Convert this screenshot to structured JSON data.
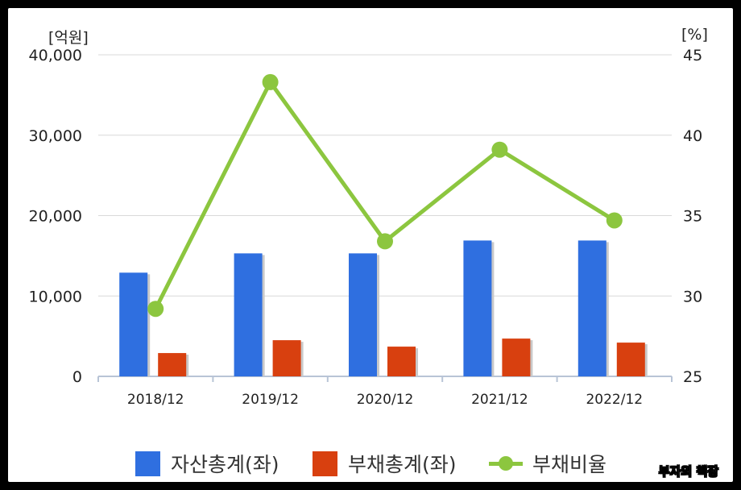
{
  "colors": {
    "assets": "#2f6fe0",
    "liabilities": "#d8400f",
    "ratio": "#8cc63f",
    "grid": "#d9d9d9",
    "axis": "#b8c4d6"
  },
  "chart_data": {
    "type": "bar",
    "categories": [
      "2018/12",
      "2019/12",
      "2020/12",
      "2021/12",
      "2022/12"
    ],
    "y_left": {
      "unit_label": "[억원]",
      "ylim": [
        0,
        40000
      ],
      "ticks": [
        "0",
        "10,000",
        "20,000",
        "30,000",
        "40,000"
      ]
    },
    "y_right": {
      "unit_label": "[%]",
      "ylim": [
        25,
        45
      ],
      "ticks": [
        "25",
        "30",
        "35",
        "40",
        "45"
      ]
    },
    "series": [
      {
        "name": "자산총계(좌)",
        "type": "bar",
        "axis": "left",
        "values": [
          12900,
          15300,
          15300,
          16900,
          16900
        ]
      },
      {
        "name": "부채총계(좌)",
        "type": "bar",
        "axis": "left",
        "values": [
          2900,
          4500,
          3700,
          4700,
          4200
        ]
      },
      {
        "name": "부채비율",
        "type": "line",
        "axis": "right",
        "values": [
          29.2,
          43.3,
          33.4,
          39.1,
          34.7
        ]
      }
    ],
    "grid": true,
    "legend_position": "bottom"
  },
  "watermark": "부자의 책장"
}
